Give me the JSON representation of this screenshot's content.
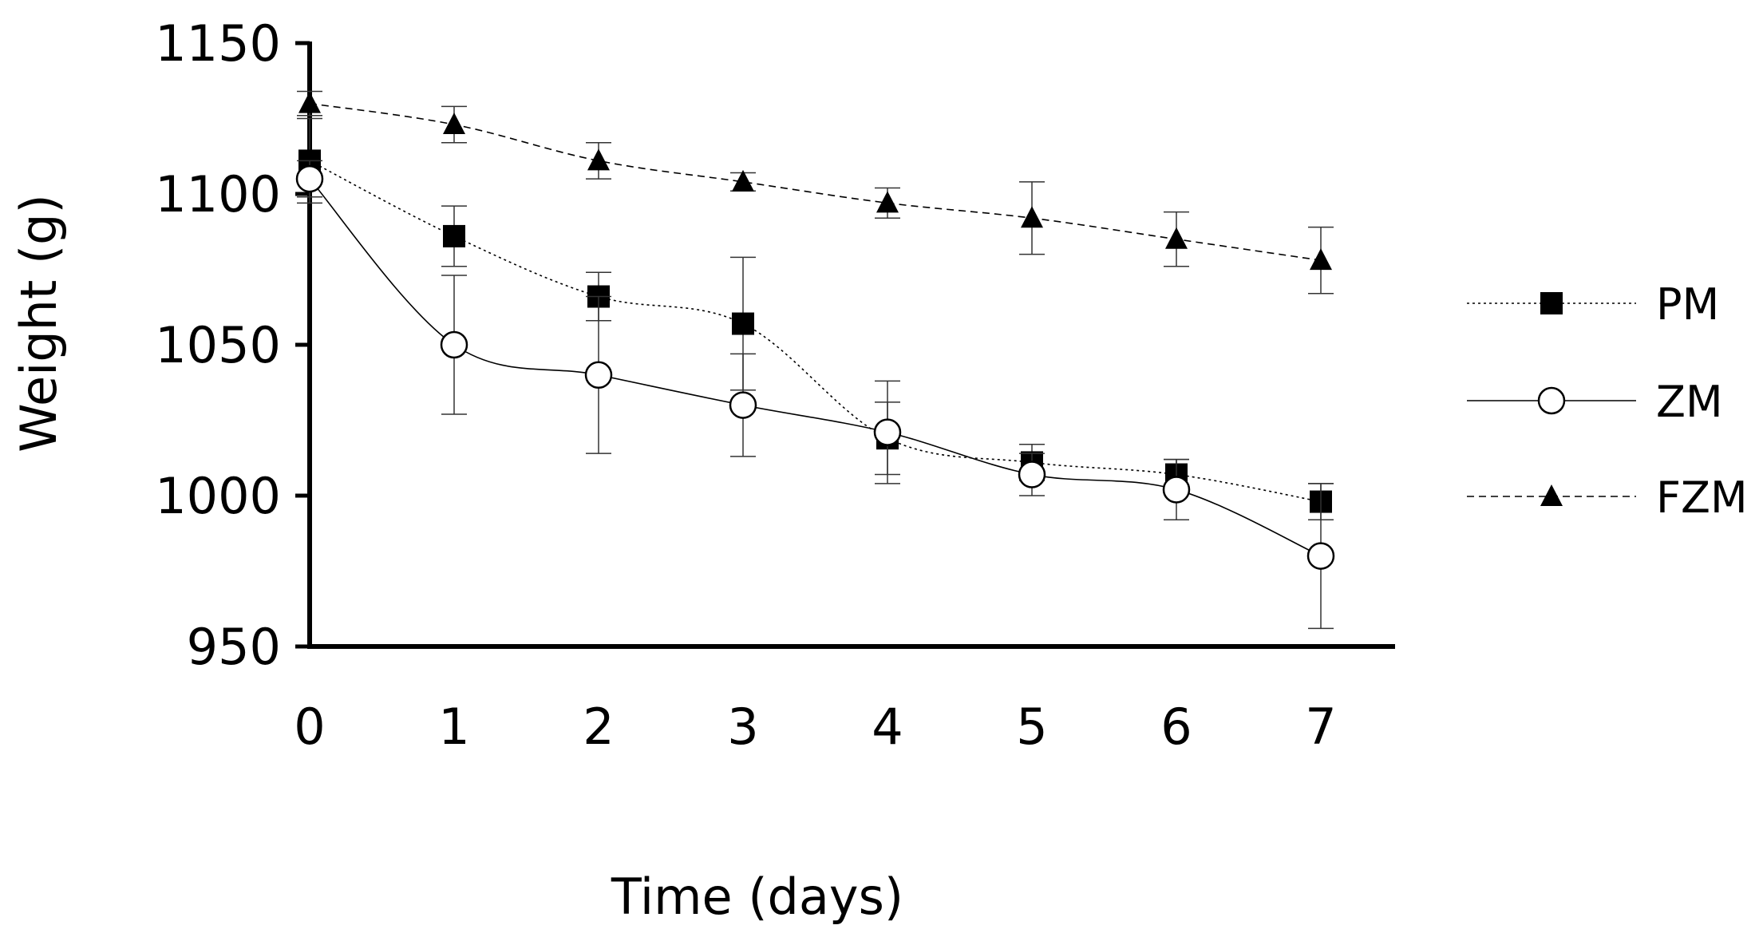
{
  "chart_data": {
    "type": "line",
    "title": "",
    "xlabel": "Time (days)",
    "ylabel": "Weight (g)",
    "x": [
      0,
      1,
      2,
      3,
      4,
      5,
      6,
      7
    ],
    "x_ticks": [
      "0",
      "1",
      "2",
      "3",
      "4",
      "5",
      "6",
      "7"
    ],
    "y_ticks": [
      "950",
      "1000",
      "1050",
      "1100",
      "1150"
    ],
    "xlim": [
      0,
      7
    ],
    "ylim": [
      950,
      1150
    ],
    "grid": false,
    "legend_position": "right",
    "series": [
      {
        "name": "PM",
        "marker": "filled-square",
        "line_style": "dotted",
        "values": [
          1111,
          1086,
          1066,
          1057,
          1019,
          1011,
          1007,
          998
        ],
        "errors": [
          14,
          10,
          8,
          22,
          12,
          6,
          5,
          6
        ]
      },
      {
        "name": "ZM",
        "marker": "open-circle",
        "line_style": "solid",
        "values": [
          1105,
          1050,
          1040,
          1030,
          1021,
          1007,
          1002,
          980
        ],
        "errors": [
          6,
          23,
          26,
          17,
          17,
          7,
          10,
          24
        ]
      },
      {
        "name": "FZM",
        "marker": "filled-triangle",
        "line_style": "dashed",
        "values": [
          1130,
          1123,
          1111,
          1104,
          1097,
          1092,
          1085,
          1078
        ],
        "errors": [
          4,
          6,
          6,
          3,
          5,
          12,
          9,
          11
        ]
      }
    ]
  }
}
